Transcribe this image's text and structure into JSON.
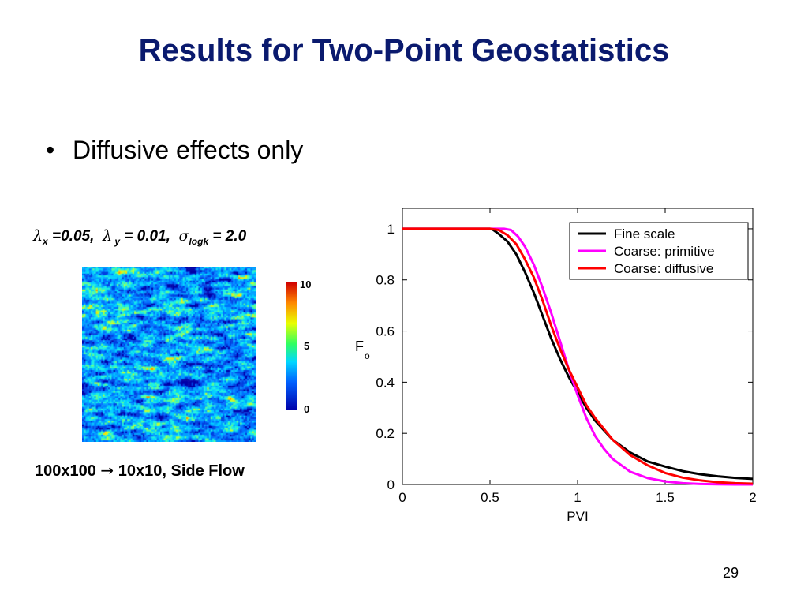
{
  "slide": {
    "title": "Results for Two-Point Geostatistics",
    "bullet": "Diffusive effects only",
    "bullet_marker": "•",
    "params": {
      "lambda_x_symbol": "λ",
      "lambda_x_sub": "x",
      "lambda_x_value": " =0.05,",
      "lambda_y_symbol": "λ",
      "lambda_y_sub": " y",
      "lambda_y_value": " = 0.01,",
      "sigma_symbol": "σ",
      "sigma_sub": "logk",
      "sigma_value": " = 2.0"
    },
    "caption_left": "100x100 ",
    "caption_arrow": "→",
    "caption_right": " 10x10, Side Flow",
    "page_number": "29"
  },
  "permeability_map": {
    "colorbar_labels": {
      "max": "10",
      "mid": "5",
      "min": "0"
    },
    "colors": [
      "#0000a8",
      "#0040e0",
      "#0070ff",
      "#00a0ff",
      "#00d0ff",
      "#20f0e0",
      "#60ff90",
      "#c0ff30",
      "#ffe000",
      "#ff9000",
      "#ff3000",
      "#c00000"
    ]
  },
  "chart_data": {
    "type": "line",
    "xlabel": "PVI",
    "ylabel": "F",
    "ylabel_sub": "o",
    "xlim": [
      0,
      2
    ],
    "ylim": [
      0,
      1.08
    ],
    "xticks": [
      0,
      0.5,
      1,
      1.5,
      2
    ],
    "xtick_labels": [
      "0",
      "0.5",
      "1",
      "1.5",
      "2"
    ],
    "yticks": [
      0,
      0.2,
      0.4,
      0.6,
      0.8,
      1
    ],
    "ytick_labels": [
      "0",
      "0.2",
      "0.4",
      "0.6",
      "0.8",
      "1"
    ],
    "legend_position": "top-right",
    "series": [
      {
        "name": "Fine scale",
        "color": "#000000",
        "x": [
          0,
          0.5,
          0.52,
          0.55,
          0.6,
          0.65,
          0.7,
          0.75,
          0.8,
          0.85,
          0.9,
          0.95,
          1.0,
          1.05,
          1.1,
          1.2,
          1.3,
          1.4,
          1.5,
          1.6,
          1.7,
          1.8,
          1.9,
          2.0
        ],
        "y": [
          1,
          1,
          0.995,
          0.98,
          0.95,
          0.9,
          0.83,
          0.75,
          0.66,
          0.57,
          0.49,
          0.42,
          0.36,
          0.3,
          0.25,
          0.175,
          0.125,
          0.09,
          0.07,
          0.052,
          0.04,
          0.032,
          0.026,
          0.022
        ]
      },
      {
        "name": "Coarse: primitive",
        "color": "#ff00ff",
        "x": [
          0,
          0.58,
          0.62,
          0.66,
          0.7,
          0.75,
          0.8,
          0.85,
          0.9,
          0.95,
          1.0,
          1.05,
          1.1,
          1.15,
          1.2,
          1.3,
          1.4,
          1.5,
          1.6,
          1.7,
          1.8,
          1.9,
          2.0
        ],
        "y": [
          1,
          1,
          0.995,
          0.97,
          0.93,
          0.86,
          0.77,
          0.67,
          0.56,
          0.45,
          0.35,
          0.26,
          0.19,
          0.14,
          0.1,
          0.05,
          0.025,
          0.012,
          0.005,
          0.002,
          0.001,
          0,
          0
        ]
      },
      {
        "name": "Coarse: diffusive",
        "color": "#ff0000",
        "x": [
          0,
          0.5,
          0.55,
          0.6,
          0.65,
          0.7,
          0.75,
          0.8,
          0.85,
          0.9,
          0.95,
          1.0,
          1.05,
          1.1,
          1.2,
          1.3,
          1.4,
          1.5,
          1.6,
          1.7,
          1.8,
          1.9,
          2.0
        ],
        "y": [
          1,
          1,
          0.995,
          0.975,
          0.94,
          0.88,
          0.81,
          0.72,
          0.62,
          0.53,
          0.45,
          0.38,
          0.31,
          0.26,
          0.175,
          0.115,
          0.075,
          0.045,
          0.027,
          0.016,
          0.009,
          0.005,
          0.003
        ]
      }
    ]
  }
}
